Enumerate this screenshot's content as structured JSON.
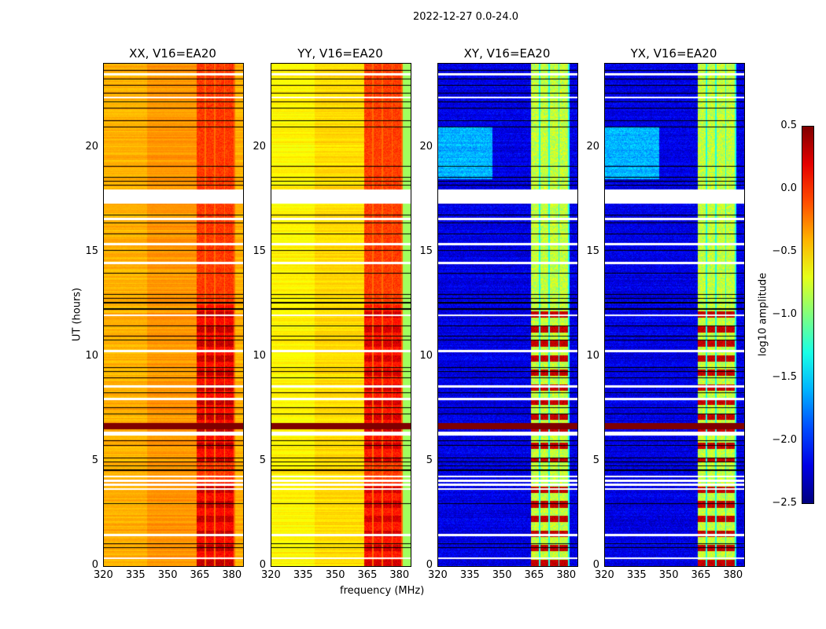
{
  "chart_data": {
    "type": "heatmap",
    "title": "2022-12-27 0.0-24.0",
    "xlabel": "frequency (MHz)",
    "ylabel": "UT (hours)",
    "xlim": [
      320,
      385
    ],
    "ylim": [
      0,
      24
    ],
    "xticks": [
      "320",
      "335",
      "350",
      "365",
      "380"
    ],
    "yticks": [
      "0",
      "5",
      "10",
      "15",
      "20"
    ],
    "panels": [
      {
        "title": "XX, V16=EA20",
        "base_level": -0.4,
        "band_level": 0.2,
        "band_mhz": [
          363,
          381
        ]
      },
      {
        "title": "YY, V16=EA20",
        "base_level": -0.6,
        "band_level": 0.15,
        "band_mhz": [
          363,
          381
        ]
      },
      {
        "title": "XY, V16=EA20",
        "base_level": -2.2,
        "band_level": -0.8,
        "band_mhz": [
          363,
          381
        ]
      },
      {
        "title": "YX, V16=EA20",
        "base_level": -2.2,
        "band_level": -0.8,
        "band_mhz": [
          363,
          381
        ]
      }
    ],
    "flagged_hours_white": [
      [
        0.35,
        0.45
      ],
      [
        1.45,
        1.55
      ],
      [
        3.65,
        3.75
      ],
      [
        3.85,
        3.95
      ],
      [
        4.05,
        4.15
      ],
      [
        4.25,
        4.35
      ],
      [
        6.25,
        6.45
      ],
      [
        7.95,
        8.05
      ],
      [
        8.55,
        8.65
      ],
      [
        10.25,
        10.35
      ],
      [
        11.95,
        12.05
      ],
      [
        14.45,
        14.55
      ],
      [
        15.35,
        15.45
      ],
      [
        16.55,
        16.65
      ],
      [
        17.35,
        18.0
      ],
      [
        22.35,
        22.45
      ],
      [
        23.45,
        23.55
      ]
    ],
    "strong_rfi_hours": [
      [
        6.55,
        6.85
      ]
    ],
    "colorbar": {
      "label": "log10 amplitude",
      "range": [
        -2.5,
        0.5
      ],
      "ticks": [
        "0.5",
        "0.0",
        "−0.5",
        "−1.0",
        "−1.5",
        "−2.0",
        "−2.5"
      ]
    }
  }
}
